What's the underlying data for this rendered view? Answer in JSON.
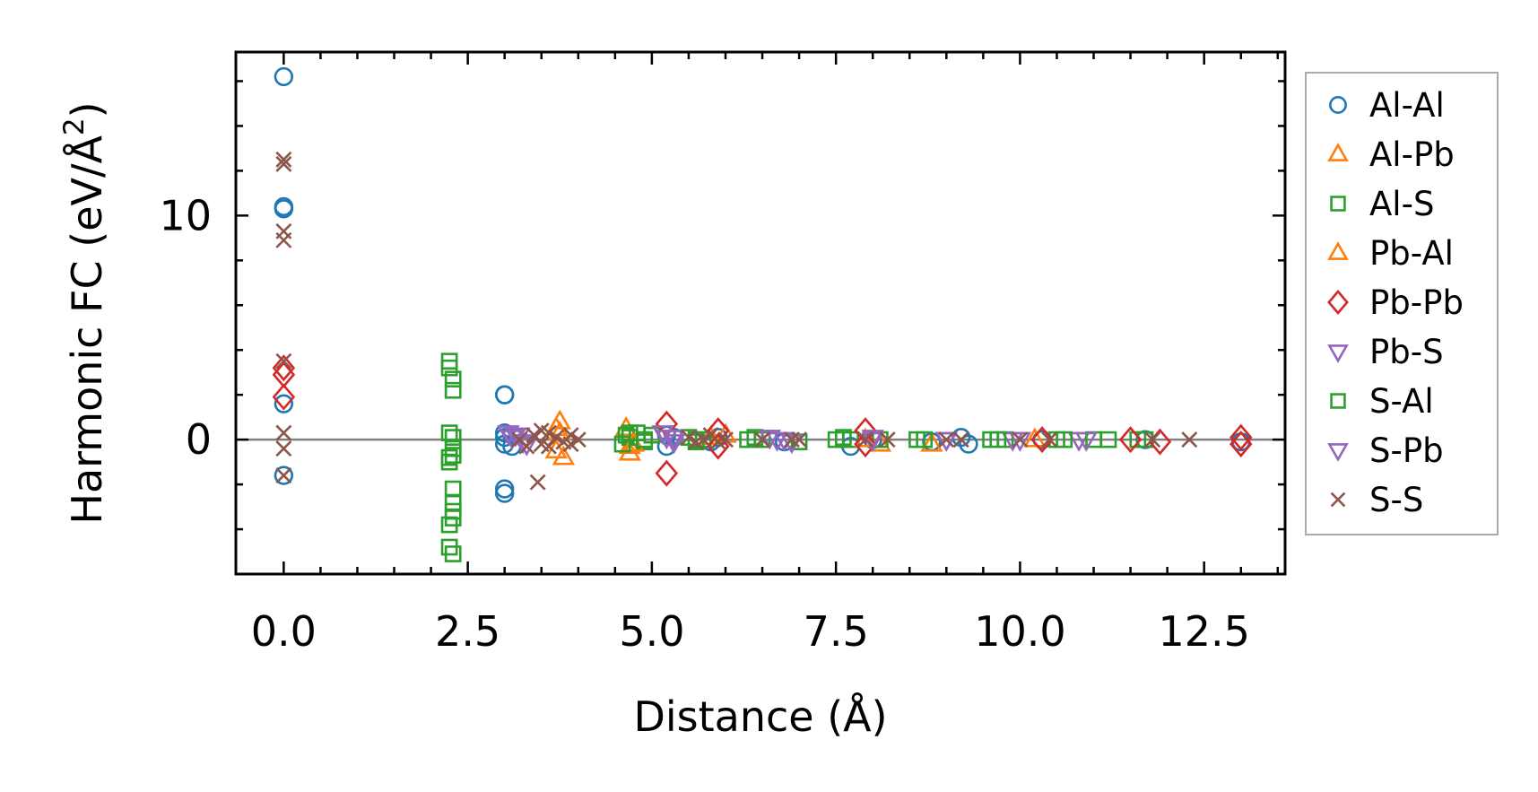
{
  "chart_data": {
    "type": "scatter",
    "title": "",
    "xlabel": "Distance (Å)",
    "ylabel_main": "Harmonic FC (eV/Å",
    "ylabel_sup": "2",
    "ylabel_close": ")",
    "xlim": [
      -0.65,
      13.6
    ],
    "ylim": [
      -6.0,
      17.3
    ],
    "xticks": [
      0.0,
      2.5,
      5.0,
      7.5,
      10.0,
      12.5
    ],
    "xtick_labels": [
      "0.0",
      "2.5",
      "5.0",
      "7.5",
      "10.0",
      "12.5"
    ],
    "yticks": [
      0,
      10
    ],
    "ytick_labels": [
      "0",
      "10"
    ],
    "hline": 0,
    "legend_position": "right, outside plot",
    "series": [
      {
        "name": "Al-Al",
        "marker": "circle",
        "color": "#1f77b4",
        "x": [
          0,
          0,
          0,
          0,
          0,
          3.0,
          3.0,
          3.0,
          3.0,
          3.0,
          3.0,
          3.0,
          3.1,
          3.1,
          5.2,
          5.2,
          5.3,
          5.8,
          5.9,
          6.8,
          7.7,
          8.0,
          8.8,
          9.2,
          9.3,
          10.3,
          11.7,
          13.0
        ],
        "y": [
          16.2,
          10.4,
          10.3,
          1.6,
          -1.6,
          2.0,
          2.0,
          0.3,
          0.1,
          -0.2,
          -2.2,
          -2.4,
          0.2,
          -0.3,
          0.2,
          -0.3,
          0.1,
          -0.1,
          0.1,
          -0.1,
          -0.3,
          0.0,
          -0.1,
          0.1,
          -0.2,
          0.0,
          0.0,
          -0.1
        ]
      },
      {
        "name": "Al-Pb",
        "marker": "triangle-up",
        "color": "#ff7f0e",
        "x": [
          3.75,
          3.75,
          3.8,
          4.65,
          4.7,
          4.7,
          6.0,
          8.1,
          8.8
        ],
        "y": [
          0.8,
          0.3,
          -0.8,
          0.5,
          -0.3,
          -0.6,
          0.2,
          -0.2,
          -0.2
        ]
      },
      {
        "name": "Al-S",
        "marker": "square",
        "color": "#2ca02c",
        "x": [
          2.25,
          2.25,
          2.3,
          2.3,
          2.25,
          2.3,
          2.3,
          2.25,
          2.3,
          2.25,
          2.3,
          2.3,
          2.3,
          2.25,
          2.3,
          2.25,
          2.3,
          4.65,
          4.7,
          4.8,
          4.9,
          5.0,
          5.5,
          5.6,
          5.7,
          6.3,
          6.5,
          7.0,
          7.6,
          7.7,
          8.1,
          8.7,
          9.6,
          9.8,
          10.5,
          11.2,
          11.6,
          11.7
        ],
        "y": [
          3.5,
          3.2,
          2.7,
          2.2,
          0.3,
          0.1,
          -0.4,
          -0.8,
          -0.7,
          -1.0,
          -2.2,
          -2.8,
          -3.2,
          -3.8,
          -3.5,
          -4.8,
          -5.1,
          0.2,
          0.1,
          0.3,
          -0.1,
          0.2,
          0.1,
          -0.1,
          0.0,
          0.0,
          0.0,
          -0.1,
          0.1,
          0.0,
          0.0,
          0.0,
          0.0,
          0.0,
          0.0,
          0.0,
          0.0,
          0.0
        ]
      },
      {
        "name": "Pb-Al",
        "marker": "triangle-up",
        "color": "#ff7f0e",
        "x": [
          3.7,
          3.7,
          4.75,
          5.8,
          7.9,
          10.2
        ],
        "y": [
          0.5,
          -0.5,
          -0.2,
          0.1,
          0.0,
          0.0
        ]
      },
      {
        "name": "Pb-Pb",
        "marker": "diamond",
        "color": "#d62728",
        "x": [
          0,
          0,
          0,
          5.2,
          5.2,
          5.9,
          5.9,
          7.9,
          7.9,
          10.3,
          11.5,
          11.9,
          13.0,
          13.0
        ],
        "y": [
          3.2,
          2.9,
          1.9,
          0.7,
          -1.5,
          0.4,
          -0.3,
          0.4,
          -0.2,
          0.0,
          0.0,
          -0.1,
          0.1,
          -0.2
        ]
      },
      {
        "name": "Pb-S",
        "marker": "triangle-down",
        "color": "#9467bd",
        "x": [
          3.05,
          3.1,
          3.2,
          3.3,
          5.15,
          5.2,
          5.3,
          6.6,
          6.7,
          6.9,
          8.0,
          9.0,
          9.9,
          10.8
        ],
        "y": [
          0.3,
          0.1,
          0.2,
          -0.2,
          0.3,
          0.1,
          -0.1,
          0.1,
          0.0,
          -0.1,
          0.1,
          0.0,
          0.0,
          0.0
        ]
      },
      {
        "name": "S-Al",
        "marker": "square",
        "color": "#2ca02c",
        "x": [
          4.6,
          4.7,
          4.9,
          5.6,
          6.4,
          7.5,
          8.6,
          9.7,
          10.6,
          11.0
        ],
        "y": [
          -0.2,
          0.3,
          0.0,
          0.0,
          0.1,
          0.0,
          0.0,
          0.0,
          0.0,
          0.0
        ]
      },
      {
        "name": "S-Pb",
        "marker": "triangle-down",
        "color": "#9467bd",
        "x": [
          3.15,
          3.25,
          5.3,
          6.6,
          6.8,
          8.0,
          9.0,
          10.0,
          10.9
        ],
        "y": [
          0.2,
          -0.1,
          0.1,
          0.1,
          0.0,
          0.0,
          0.0,
          0.0,
          0.0
        ]
      },
      {
        "name": "S-S",
        "marker": "x",
        "color": "#8c564b",
        "x": [
          0,
          0,
          0,
          0,
          0,
          0,
          0,
          0,
          3.2,
          3.3,
          3.4,
          3.45,
          3.5,
          3.5,
          3.6,
          3.6,
          3.7,
          3.8,
          3.9,
          3.9,
          4.0,
          5.5,
          5.6,
          5.7,
          5.8,
          5.9,
          6.0,
          6.5,
          6.9,
          7.0,
          7.9,
          8.2,
          9.0,
          9.2,
          10.0,
          10.4,
          11.8,
          12.3
        ],
        "y": [
          12.5,
          12.3,
          9.3,
          8.9,
          3.5,
          0.3,
          -0.4,
          -1.6,
          0.0,
          -0.3,
          0.2,
          -1.9,
          0.4,
          -0.2,
          0.3,
          -0.3,
          0.1,
          -0.1,
          0.2,
          -0.2,
          0.0,
          0.1,
          -0.1,
          0.0,
          0.2,
          -0.1,
          0.0,
          0.0,
          0.0,
          0.0,
          0.0,
          0.0,
          0.0,
          0.0,
          0.0,
          0.0,
          0.0,
          0.0
        ]
      }
    ]
  }
}
